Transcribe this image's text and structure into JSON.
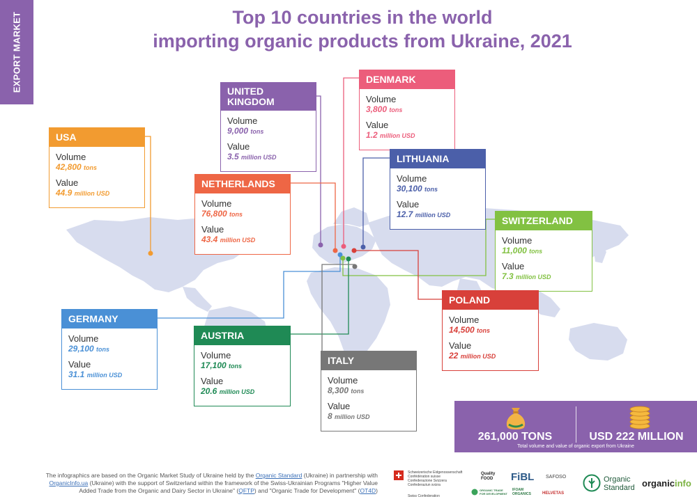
{
  "side_tab": "EXPORT MARKET",
  "title_line1": "Top 10 countries in the world",
  "title_line2": "importing organic products from Ukraine, 2021",
  "labels": {
    "volume": "Volume",
    "value": "Value"
  },
  "countries": {
    "usa": {
      "name": "USA",
      "volume": "42,800",
      "volume_unit": "tons",
      "value": "44.9",
      "value_unit": "million USD",
      "color": "#f29b30"
    },
    "uk_l1": "UNITED",
    "uk": {
      "name": "KINGDOM",
      "volume": "9,000",
      "volume_unit": "tons",
      "value": "3.5",
      "value_unit": "million USD",
      "color": "#8a62ac"
    },
    "denmark": {
      "name": "DENMARK",
      "volume": "3,800",
      "volume_unit": "tons",
      "value": "1.2",
      "value_unit": "million USD",
      "color": "#ec5d7b"
    },
    "lithuania": {
      "name": "LITHUANIA",
      "volume": "30,100",
      "volume_unit": "tons",
      "value": "12.7",
      "value_unit": "million USD",
      "color": "#4b5fa9"
    },
    "netherlands": {
      "name": "NETHERLANDS",
      "volume": "76,800",
      "volume_unit": "tons",
      "value": "43.4",
      "value_unit": "million USD",
      "color": "#ee6645"
    },
    "switzerland": {
      "name": "SWITZERLAND",
      "volume": "11,000",
      "volume_unit": "tons",
      "value": "7.3",
      "value_unit": "million USD",
      "color": "#82c142"
    },
    "poland": {
      "name": "POLAND",
      "volume": "14,500",
      "volume_unit": "tons",
      "value": "22",
      "value_unit": "million USD",
      "color": "#d8403a"
    },
    "germany": {
      "name": "GERMANY",
      "volume": "29,100",
      "volume_unit": "tons",
      "value": "31.1",
      "value_unit": "million USD",
      "color": "#4a90d6"
    },
    "austria": {
      "name": "AUSTRIA",
      "volume": "17,100",
      "volume_unit": "tons",
      "value": "20.6",
      "value_unit": "million USD",
      "color": "#1f8a55"
    },
    "italy": {
      "name": "ITALY",
      "volume": "8,300",
      "volume_unit": "tons",
      "value": "8",
      "value_unit": "million USD",
      "color": "#777777"
    }
  },
  "totals": {
    "tons": "261,000 TONS",
    "usd": "USD 222 MILLION",
    "caption": "Total volume and value of organic export from Ukraine"
  },
  "footer": {
    "p1": "The infographics are based on the Organic Market Study of Ukraine held by the ",
    "link1": "Organic Standard",
    "p2": " (Ukraine) in partnership with ",
    "link2": "OrganicInfo.ua",
    "p3": " (Ukraine) with the support of Switzerland within the framework of the Swiss-Ukrainian Programs \"Higher Value Added Trade from the Organic and Dairy Sector in Ukraine\" (",
    "link3": "QFTP",
    "p4": ") and \"Organic Trade for Development\" (",
    "link4": "OT4D",
    "p5": ")"
  },
  "logos": {
    "swiss_l1": "Schweizerische Eidgenossenschaft",
    "swiss_l2": "Confédération suisse",
    "swiss_l3": "Confederazione Svizzera",
    "swiss_l4": "Confederaziun svizra",
    "swiss_l5": "Swiss Confederation",
    "quality_food": "Quality FOOD",
    "fibl": "FiBL",
    "safoso": "SAFOSO",
    "organic_trade": "ORGANIC TRADE FOR DEVELOPMENT",
    "ifoam": "IFOAM ORGANICS",
    "helvetas": "HELVETAS",
    "organic_standard_l1": "Organic",
    "organic_standard_l2": "Standard",
    "organicinfo_a": "organic",
    "organicinfo_b": "info"
  }
}
